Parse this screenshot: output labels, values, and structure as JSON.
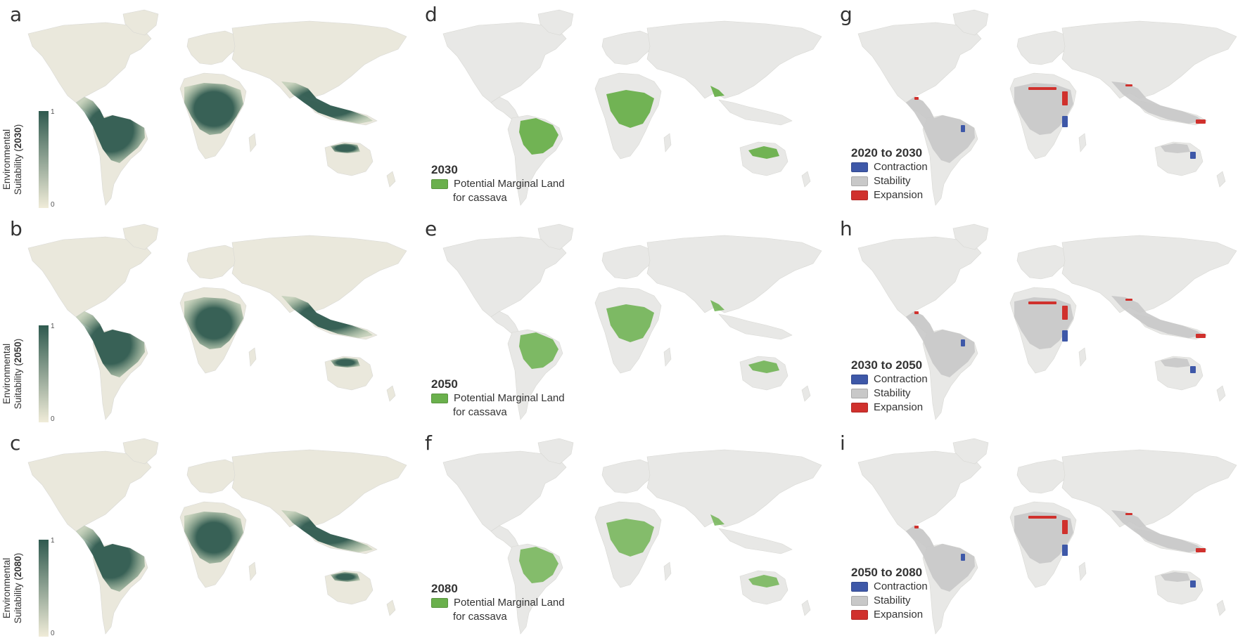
{
  "panels": [
    {
      "letter": "a",
      "type": "suit",
      "year": "2030",
      "richness": 1.0
    },
    {
      "letter": "d",
      "type": "marginal",
      "year": "2030",
      "richness": 0.95
    },
    {
      "letter": "g",
      "type": "change",
      "period": "2020 to 2030"
    },
    {
      "letter": "b",
      "type": "suit",
      "year": "2050",
      "richness": 0.9
    },
    {
      "letter": "e",
      "type": "marginal",
      "year": "2050",
      "richness": 0.85
    },
    {
      "letter": "h",
      "type": "change",
      "period": "2030 to 2050"
    },
    {
      "letter": "c",
      "type": "suit",
      "year": "2080",
      "richness": 0.88
    },
    {
      "letter": "f",
      "type": "marginal",
      "year": "2080",
      "richness": 0.8
    },
    {
      "letter": "i",
      "type": "change",
      "period": "2050 to 2080"
    }
  ],
  "colorbar": {
    "max_label": "1",
    "min_label": "0",
    "title_line1": "Environmental",
    "title_line2": "Suitability ("
  },
  "marginal_legend": {
    "line1": "Potential Marginal Land",
    "line2": "for cassava"
  },
  "change_legend": {
    "contraction": "Contraction",
    "stability": "Stability",
    "expansion": "Expansion"
  },
  "colors": {
    "land": "#e8e8e6",
    "suit_land": "#eae8dc",
    "suit_high": "#2f5a4f",
    "suit_low": "#f0ecd8",
    "marginal": "#6ab04c",
    "contraction": "#3e58a8",
    "stability": "#c8c8c8",
    "expansion": "#d0312d"
  }
}
